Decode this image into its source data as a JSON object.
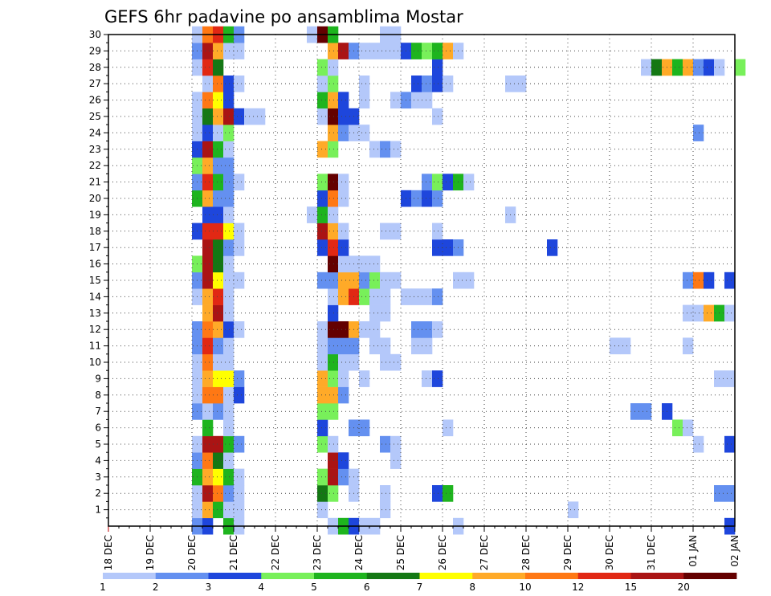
{
  "chart_data": {
    "type": "heatmap",
    "title": "GEFS 6hr padavine po ansamblima Mostar",
    "x_tick_labels": [
      "18 DEC",
      "19 DEC",
      "20 DEC",
      "21 DEC",
      "22 DEC",
      "23 DEC",
      "24 DEC",
      "25 DEC",
      "26 DEC",
      "27 DEC",
      "28 DEC",
      "29 DEC",
      "30 DEC",
      "31 DEC",
      "01 JAN",
      "02 JAN"
    ],
    "y_tick_labels": [
      "1",
      "2",
      "3",
      "4",
      "5",
      "6",
      "7",
      "8",
      "9",
      "10",
      "11",
      "12",
      "13",
      "14",
      "15",
      "16",
      "17",
      "18",
      "19",
      "20",
      "21",
      "22",
      "23",
      "24",
      "25",
      "26",
      "27",
      "28",
      "29",
      "30"
    ],
    "xlim_days": [
      0,
      15
    ],
    "ylim": [
      0,
      30
    ],
    "grid": true,
    "legend_position": "bottom",
    "colorbar": {
      "labels": [
        "1",
        "2",
        "3",
        "4",
        "5",
        "6",
        "7",
        "8",
        "10",
        "12",
        "15",
        "20"
      ],
      "colors": [
        "#b4c8fa",
        "#6490f0",
        "#1e46dc",
        "#78f05a",
        "#1eb41e",
        "#147814",
        "#ffff00",
        "#ffaa28",
        "#ff7814",
        "#e12814",
        "#aa1414",
        "#640000"
      ]
    },
    "cells": [
      [
        2.0,
        0,
        2
      ],
      [
        2.25,
        0,
        3
      ],
      [
        2.75,
        0,
        5
      ],
      [
        3.0,
        0,
        1
      ],
      [
        5.25,
        0,
        1
      ],
      [
        5.5,
        0,
        5
      ],
      [
        5.75,
        0,
        3
      ],
      [
        6.0,
        0,
        1
      ],
      [
        6.25,
        0,
        1
      ],
      [
        8.25,
        0,
        1
      ],
      [
        14.75,
        0,
        3
      ],
      [
        2.0,
        1,
        1
      ],
      [
        2.25,
        1,
        8
      ],
      [
        2.5,
        1,
        5
      ],
      [
        2.75,
        1,
        1
      ],
      [
        3.0,
        1,
        1
      ],
      [
        5.0,
        1,
        1
      ],
      [
        6.5,
        1,
        1
      ],
      [
        11.0,
        1,
        1
      ],
      [
        2.0,
        2,
        1
      ],
      [
        2.25,
        2,
        11
      ],
      [
        2.5,
        2,
        9
      ],
      [
        2.75,
        2,
        2
      ],
      [
        3.0,
        2,
        1
      ],
      [
        5.0,
        2,
        6
      ],
      [
        5.25,
        2,
        4
      ],
      [
        5.75,
        2,
        1
      ],
      [
        6.5,
        2,
        1
      ],
      [
        7.75,
        2,
        3
      ],
      [
        8.0,
        2,
        5
      ],
      [
        14.5,
        2,
        2
      ],
      [
        14.75,
        2,
        2
      ],
      [
        2.0,
        3,
        5
      ],
      [
        2.25,
        3,
        8
      ],
      [
        2.5,
        3,
        7
      ],
      [
        2.75,
        3,
        5
      ],
      [
        3.0,
        3,
        1
      ],
      [
        5.0,
        3,
        4
      ],
      [
        5.25,
        3,
        11
      ],
      [
        5.5,
        3,
        2
      ],
      [
        5.75,
        3,
        1
      ],
      [
        2.0,
        4,
        2
      ],
      [
        2.25,
        4,
        9
      ],
      [
        2.5,
        4,
        6
      ],
      [
        2.75,
        4,
        1
      ],
      [
        5.25,
        4,
        11
      ],
      [
        5.5,
        4,
        3
      ],
      [
        6.75,
        4,
        1
      ],
      [
        2.0,
        5,
        1
      ],
      [
        2.25,
        5,
        11
      ],
      [
        2.5,
        5,
        11
      ],
      [
        2.75,
        5,
        5
      ],
      [
        3.0,
        5,
        2
      ],
      [
        5.0,
        5,
        4
      ],
      [
        5.25,
        5,
        1
      ],
      [
        6.5,
        5,
        2
      ],
      [
        6.75,
        5,
        1
      ],
      [
        14.0,
        5,
        1
      ],
      [
        14.75,
        5,
        3
      ],
      [
        2.25,
        6,
        5
      ],
      [
        2.75,
        6,
        1
      ],
      [
        5.0,
        6,
        3
      ],
      [
        5.75,
        6,
        2
      ],
      [
        6.0,
        6,
        2
      ],
      [
        8.0,
        6,
        1
      ],
      [
        13.5,
        6,
        4
      ],
      [
        13.75,
        6,
        1
      ],
      [
        2.0,
        7,
        2
      ],
      [
        2.25,
        7,
        1
      ],
      [
        2.5,
        7,
        2
      ],
      [
        2.75,
        7,
        1
      ],
      [
        5.0,
        7,
        4
      ],
      [
        5.25,
        7,
        4
      ],
      [
        12.5,
        7,
        2
      ],
      [
        12.75,
        7,
        2
      ],
      [
        13.25,
        7,
        3
      ],
      [
        2.0,
        8,
        1
      ],
      [
        2.25,
        8,
        9
      ],
      [
        2.5,
        8,
        9
      ],
      [
        2.75,
        8,
        1
      ],
      [
        3.0,
        8,
        3
      ],
      [
        5.0,
        8,
        8
      ],
      [
        5.25,
        8,
        8
      ],
      [
        5.5,
        8,
        2
      ],
      [
        2.0,
        9,
        1
      ],
      [
        2.25,
        9,
        8
      ],
      [
        2.5,
        9,
        7
      ],
      [
        2.75,
        9,
        7
      ],
      [
        3.0,
        9,
        2
      ],
      [
        5.0,
        9,
        8
      ],
      [
        5.25,
        9,
        4
      ],
      [
        5.5,
        9,
        1
      ],
      [
        6.0,
        9,
        1
      ],
      [
        7.5,
        9,
        1
      ],
      [
        7.75,
        9,
        3
      ],
      [
        14.5,
        9,
        1
      ],
      [
        14.75,
        9,
        1
      ],
      [
        2.0,
        10,
        1
      ],
      [
        2.25,
        10,
        9
      ],
      [
        2.5,
        10,
        1
      ],
      [
        2.75,
        10,
        1
      ],
      [
        5.0,
        10,
        1
      ],
      [
        5.25,
        10,
        5
      ],
      [
        5.5,
        10,
        1
      ],
      [
        5.75,
        10,
        1
      ],
      [
        6.5,
        10,
        1
      ],
      [
        6.75,
        10,
        1
      ],
      [
        2.0,
        11,
        2
      ],
      [
        2.25,
        11,
        10
      ],
      [
        2.5,
        11,
        2
      ],
      [
        2.75,
        11,
        1
      ],
      [
        5.0,
        11,
        1
      ],
      [
        5.25,
        11,
        2
      ],
      [
        5.5,
        11,
        2
      ],
      [
        5.75,
        11,
        2
      ],
      [
        6.25,
        11,
        1
      ],
      [
        6.5,
        11,
        1
      ],
      [
        7.25,
        11,
        1
      ],
      [
        7.5,
        11,
        1
      ],
      [
        12.0,
        11,
        1
      ],
      [
        12.25,
        11,
        1
      ],
      [
        13.75,
        11,
        1
      ],
      [
        2.0,
        12,
        2
      ],
      [
        2.25,
        12,
        9
      ],
      [
        2.5,
        12,
        8
      ],
      [
        2.75,
        12,
        3
      ],
      [
        3.0,
        12,
        1
      ],
      [
        5.0,
        12,
        1
      ],
      [
        5.25,
        12,
        12
      ],
      [
        5.5,
        12,
        12
      ],
      [
        5.75,
        12,
        8
      ],
      [
        6.0,
        12,
        1
      ],
      [
        6.25,
        12,
        1
      ],
      [
        7.25,
        12,
        2
      ],
      [
        7.5,
        12,
        2
      ],
      [
        7.75,
        12,
        1
      ],
      [
        2.25,
        13,
        8
      ],
      [
        2.5,
        13,
        11
      ],
      [
        2.75,
        13,
        1
      ],
      [
        5.25,
        13,
        3
      ],
      [
        6.25,
        13,
        1
      ],
      [
        6.5,
        13,
        1
      ],
      [
        13.75,
        13,
        1
      ],
      [
        14.0,
        13,
        1
      ],
      [
        14.25,
        13,
        8
      ],
      [
        14.5,
        13,
        5
      ],
      [
        14.75,
        13,
        1
      ],
      [
        2.0,
        14,
        1
      ],
      [
        2.25,
        14,
        8
      ],
      [
        2.5,
        14,
        10
      ],
      [
        2.75,
        14,
        1
      ],
      [
        5.25,
        14,
        1
      ],
      [
        5.5,
        14,
        8
      ],
      [
        5.75,
        14,
        10
      ],
      [
        6.0,
        14,
        4
      ],
      [
        6.25,
        14,
        1
      ],
      [
        6.5,
        14,
        1
      ],
      [
        7.0,
        14,
        1
      ],
      [
        7.25,
        14,
        1
      ],
      [
        7.5,
        14,
        1
      ],
      [
        7.75,
        14,
        2
      ],
      [
        2.0,
        15,
        2
      ],
      [
        2.25,
        15,
        11
      ],
      [
        2.5,
        15,
        7
      ],
      [
        2.75,
        15,
        1
      ],
      [
        3.0,
        15,
        1
      ],
      [
        5.0,
        15,
        2
      ],
      [
        5.25,
        15,
        2
      ],
      [
        5.5,
        15,
        8
      ],
      [
        5.75,
        15,
        8
      ],
      [
        6.0,
        15,
        2
      ],
      [
        6.25,
        15,
        4
      ],
      [
        6.5,
        15,
        1
      ],
      [
        6.75,
        15,
        1
      ],
      [
        8.25,
        15,
        1
      ],
      [
        8.5,
        15,
        1
      ],
      [
        13.75,
        15,
        2
      ],
      [
        14.0,
        15,
        9
      ],
      [
        14.25,
        15,
        3
      ],
      [
        14.75,
        15,
        3
      ],
      [
        2.0,
        16,
        4
      ],
      [
        2.25,
        16,
        11
      ],
      [
        2.5,
        16,
        6
      ],
      [
        2.75,
        16,
        1
      ],
      [
        5.25,
        16,
        12
      ],
      [
        5.5,
        16,
        1
      ],
      [
        5.75,
        16,
        1
      ],
      [
        6.0,
        16,
        1
      ],
      [
        6.25,
        16,
        1
      ],
      [
        2.25,
        17,
        11
      ],
      [
        2.5,
        17,
        6
      ],
      [
        2.75,
        17,
        2
      ],
      [
        3.0,
        17,
        1
      ],
      [
        5.0,
        17,
        3
      ],
      [
        5.25,
        17,
        10
      ],
      [
        5.5,
        17,
        3
      ],
      [
        7.75,
        17,
        3
      ],
      [
        8.0,
        17,
        3
      ],
      [
        8.25,
        17,
        2
      ],
      [
        10.5,
        17,
        3
      ],
      [
        2.0,
        18,
        3
      ],
      [
        2.25,
        18,
        10
      ],
      [
        2.5,
        18,
        10
      ],
      [
        2.75,
        18,
        7
      ],
      [
        3.0,
        18,
        1
      ],
      [
        5.0,
        18,
        11
      ],
      [
        5.25,
        18,
        8
      ],
      [
        5.5,
        18,
        1
      ],
      [
        6.5,
        18,
        1
      ],
      [
        6.75,
        18,
        1
      ],
      [
        7.75,
        18,
        1
      ],
      [
        2.25,
        19,
        3
      ],
      [
        2.5,
        19,
        3
      ],
      [
        2.75,
        19,
        1
      ],
      [
        4.75,
        19,
        1
      ],
      [
        5.0,
        19,
        5
      ],
      [
        5.25,
        19,
        1
      ],
      [
        9.5,
        19,
        1
      ],
      [
        2.0,
        20,
        5
      ],
      [
        2.25,
        20,
        8
      ],
      [
        2.5,
        20,
        2
      ],
      [
        2.75,
        20,
        2
      ],
      [
        5.0,
        20,
        3
      ],
      [
        5.25,
        20,
        9
      ],
      [
        5.5,
        20,
        1
      ],
      [
        7.0,
        20,
        3
      ],
      [
        7.25,
        20,
        2
      ],
      [
        7.5,
        20,
        3
      ],
      [
        7.75,
        20,
        2
      ],
      [
        2.0,
        21,
        2
      ],
      [
        2.25,
        21,
        10
      ],
      [
        2.5,
        21,
        5
      ],
      [
        2.75,
        21,
        2
      ],
      [
        3.0,
        21,
        1
      ],
      [
        5.0,
        21,
        4
      ],
      [
        5.25,
        21,
        12
      ],
      [
        5.5,
        21,
        1
      ],
      [
        7.5,
        21,
        2
      ],
      [
        7.75,
        21,
        4
      ],
      [
        8.0,
        21,
        3
      ],
      [
        8.25,
        21,
        5
      ],
      [
        8.5,
        21,
        1
      ],
      [
        2.0,
        22,
        4
      ],
      [
        2.25,
        22,
        8
      ],
      [
        2.5,
        22,
        2
      ],
      [
        2.75,
        22,
        2
      ],
      [
        2.0,
        23,
        3
      ],
      [
        2.25,
        23,
        11
      ],
      [
        2.5,
        23,
        5
      ],
      [
        2.75,
        23,
        1
      ],
      [
        5.0,
        23,
        8
      ],
      [
        5.25,
        23,
        4
      ],
      [
        6.25,
        23,
        1
      ],
      [
        6.5,
        23,
        2
      ],
      [
        6.75,
        23,
        1
      ],
      [
        2.0,
        24,
        1
      ],
      [
        2.25,
        24,
        3
      ],
      [
        2.5,
        24,
        1
      ],
      [
        2.75,
        24,
        4
      ],
      [
        5.25,
        24,
        8
      ],
      [
        5.5,
        24,
        2
      ],
      [
        5.75,
        24,
        1
      ],
      [
        6.0,
        24,
        1
      ],
      [
        14.0,
        24,
        2
      ],
      [
        2.0,
        25,
        1
      ],
      [
        2.25,
        25,
        6
      ],
      [
        2.5,
        25,
        8
      ],
      [
        2.75,
        25,
        11
      ],
      [
        3.0,
        25,
        3
      ],
      [
        3.25,
        25,
        1
      ],
      [
        3.5,
        25,
        1
      ],
      [
        5.0,
        25,
        1
      ],
      [
        5.25,
        25,
        12
      ],
      [
        5.5,
        25,
        3
      ],
      [
        5.75,
        25,
        3
      ],
      [
        7.75,
        25,
        1
      ],
      [
        2.0,
        26,
        1
      ],
      [
        2.25,
        26,
        9
      ],
      [
        2.5,
        26,
        7
      ],
      [
        2.75,
        26,
        3
      ],
      [
        5.0,
        26,
        5
      ],
      [
        5.25,
        26,
        8
      ],
      [
        5.5,
        26,
        3
      ],
      [
        6.0,
        26,
        1
      ],
      [
        6.75,
        26,
        1
      ],
      [
        7.0,
        26,
        2
      ],
      [
        7.25,
        26,
        1
      ],
      [
        7.5,
        26,
        1
      ],
      [
        2.25,
        27,
        1
      ],
      [
        2.5,
        27,
        9
      ],
      [
        2.75,
        27,
        3
      ],
      [
        3.0,
        27,
        1
      ],
      [
        5.0,
        27,
        1
      ],
      [
        5.25,
        27,
        4
      ],
      [
        6.0,
        27,
        1
      ],
      [
        7.25,
        27,
        3
      ],
      [
        7.5,
        27,
        2
      ],
      [
        7.75,
        27,
        3
      ],
      [
        8.0,
        27,
        1
      ],
      [
        9.5,
        27,
        1
      ],
      [
        9.75,
        27,
        1
      ],
      [
        2.0,
        28,
        1
      ],
      [
        2.25,
        28,
        10
      ],
      [
        2.5,
        28,
        6
      ],
      [
        5.0,
        28,
        4
      ],
      [
        5.25,
        28,
        1
      ],
      [
        7.75,
        28,
        3
      ],
      [
        12.75,
        28,
        1
      ],
      [
        13.0,
        28,
        6
      ],
      [
        13.25,
        28,
        8
      ],
      [
        13.5,
        28,
        5
      ],
      [
        13.75,
        28,
        8
      ],
      [
        14.0,
        28,
        2
      ],
      [
        14.25,
        28,
        3
      ],
      [
        14.5,
        28,
        1
      ],
      [
        15.0,
        28,
        4
      ],
      [
        2.0,
        29,
        2
      ],
      [
        2.25,
        29,
        11
      ],
      [
        2.5,
        29,
        8
      ],
      [
        2.75,
        29,
        1
      ],
      [
        3.0,
        29,
        1
      ],
      [
        5.25,
        29,
        8
      ],
      [
        5.5,
        29,
        11
      ],
      [
        5.75,
        29,
        2
      ],
      [
        6.0,
        29,
        1
      ],
      [
        6.25,
        29,
        1
      ],
      [
        6.5,
        29,
        1
      ],
      [
        6.75,
        29,
        1
      ],
      [
        7.0,
        29,
        3
      ],
      [
        7.25,
        29,
        5
      ],
      [
        7.5,
        29,
        4
      ],
      [
        7.75,
        29,
        5
      ],
      [
        8.0,
        29,
        8
      ],
      [
        8.25,
        29,
        1
      ],
      [
        2.0,
        30,
        1
      ],
      [
        2.25,
        30,
        9
      ],
      [
        2.5,
        30,
        10
      ],
      [
        2.75,
        30,
        5
      ],
      [
        3.0,
        30,
        2
      ],
      [
        4.75,
        30,
        1
      ],
      [
        5.0,
        30,
        12
      ],
      [
        5.25,
        30,
        5
      ],
      [
        6.5,
        30,
        1
      ],
      [
        6.75,
        30,
        1
      ]
    ]
  }
}
